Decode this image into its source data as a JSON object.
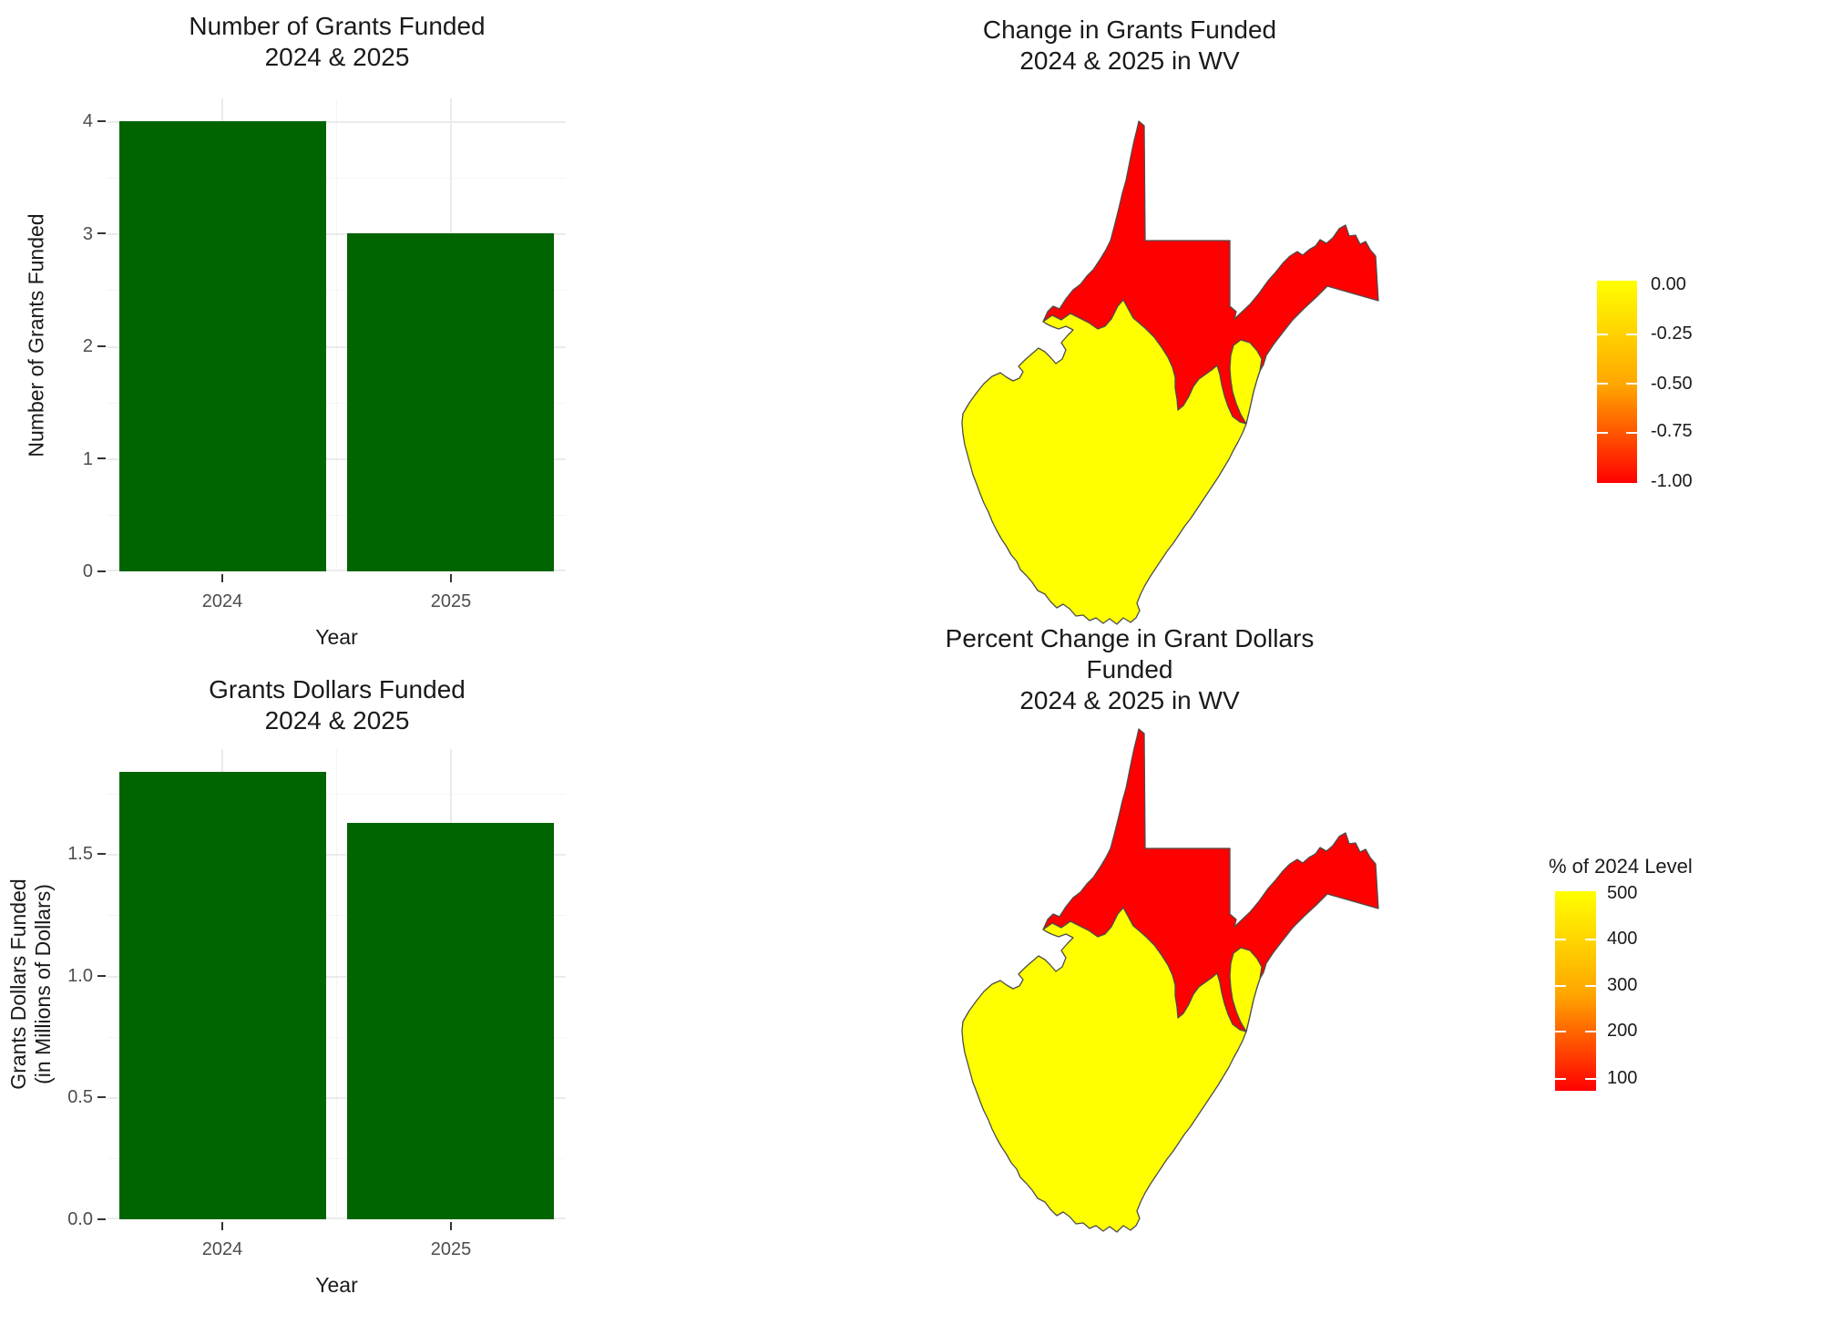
{
  "charts": {
    "grants_count": {
      "title_line1": "Number of Grants Funded",
      "title_line2": "2024 & 2025",
      "y_label": "Number of Grants Funded",
      "x_label": "Year",
      "y_ticks": [
        "4",
        "3",
        "2",
        "1",
        "0"
      ],
      "x_ticks": [
        "2024",
        "2025"
      ]
    },
    "grants_dollars": {
      "title_line1": "Grants Dollars Funded",
      "title_line2": "2024 & 2025",
      "y_label_line1": "Grants Dollars Funded",
      "y_label_line2": "(in Millions of Dollars)",
      "x_label": "Year",
      "y_ticks": [
        "1.5",
        "1.0",
        "0.5",
        "0.0"
      ],
      "x_ticks": [
        "2024",
        "2025"
      ]
    }
  },
  "maps": {
    "grants_change": {
      "title_line1": "Change in Grants Funded",
      "title_line2": "2024 & 2025 in WV",
      "legend_ticks": [
        "0.00",
        "-0.25",
        "-0.50",
        "-0.75",
        "-1.00"
      ]
    },
    "dollars_change": {
      "title_line1": "Percent Change in Grant Dollars Funded",
      "title_line2": "2024 & 2025 in WV",
      "legend_title": "% of 2024 Level",
      "legend_ticks": [
        "500",
        "400",
        "300",
        "200",
        "100"
      ]
    }
  },
  "colors": {
    "bar": "#006400",
    "map_high": "#FFFF00",
    "map_mid": "#FFA500",
    "map_low": "#FF0000",
    "outline": "#4D4D4D",
    "grid_major": "#EBEBEB",
    "grid_minor": "#F5F5F5",
    "tick_label": "#4D4D4D",
    "tick_mark": "#333333",
    "text": "#1A1A1A"
  },
  "chart_data": [
    {
      "type": "bar",
      "title": "Number of Grants Funded 2024 & 2025",
      "categories": [
        "2024",
        "2025"
      ],
      "values": [
        4,
        3
      ],
      "xlabel": "Year",
      "ylabel": "Number of Grants Funded",
      "ylim": [
        0,
        4
      ],
      "y_tick_step": 1,
      "grid": true,
      "legend_position": "none",
      "bar_color": "#006400"
    },
    {
      "type": "heatmap",
      "subtype": "choropleth",
      "title": "Change in Grants Funded 2024 & 2025 in WV",
      "geography": "West Virginia",
      "legend_position": "right",
      "scale": {
        "ticks": [
          0,
          -0.25,
          -0.5,
          -0.75,
          -1
        ],
        "high_color": "#FFFF00",
        "low_color": "#FF0000"
      },
      "regions": [
        {
          "name": "northern WV including both panhandles",
          "value": -1
        },
        {
          "name": "southern WV",
          "value": 0
        },
        {
          "name": "small east-central region",
          "value": 0
        }
      ]
    },
    {
      "type": "bar",
      "title": "Grants Dollars Funded 2024 & 2025",
      "categories": [
        "2024",
        "2025"
      ],
      "values": [
        1.84,
        1.63
      ],
      "xlabel": "Year",
      "ylabel": "Grants Dollars Funded (in Millions of Dollars)",
      "ylim": [
        0,
        1.93
      ],
      "y_tick_step": 0.5,
      "grid": true,
      "legend_position": "none",
      "bar_color": "#006400"
    },
    {
      "type": "heatmap",
      "subtype": "choropleth",
      "title": "Percent Change in Grant Dollars Funded 2024 & 2025 in WV",
      "geography": "West Virginia",
      "legend_title": "% of 2024 Level",
      "legend_position": "right",
      "scale": {
        "ticks": [
          500,
          400,
          300,
          200,
          100
        ],
        "high_color": "#FFFF00",
        "low_color": "#FF0000"
      },
      "regions": [
        {
          "name": "northern WV including both panhandles",
          "value": 100
        },
        {
          "name": "southern WV",
          "value": 500
        },
        {
          "name": "small east-central region",
          "value": 500
        }
      ]
    }
  ]
}
